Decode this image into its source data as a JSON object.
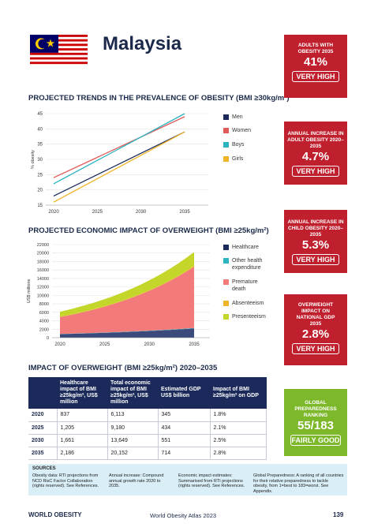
{
  "header": {
    "country": "Malaysia"
  },
  "sections": {
    "trends": "PROJECTED TRENDS IN THE PREVALENCE OF OBESITY (BMI ≥30kg/m²)",
    "economic": "PROJECTED ECONOMIC IMPACT OF OVERWEIGHT (BMI ≥25kg/m²)",
    "impact": "IMPACT OF OVERWEIGHT (BMI ≥25kg/m²) 2020–2035"
  },
  "chart_data": [
    {
      "type": "line",
      "x": [
        2020,
        2035
      ],
      "xticks": [
        "2020",
        "2025",
        "2030",
        "2035"
      ],
      "yticks": [
        "15",
        "20",
        "25",
        "30",
        "35",
        "40",
        "45"
      ],
      "ylim": [
        15,
        45
      ],
      "ylabel": "% obesity",
      "series": [
        {
          "name": "Men",
          "color": "#1b2a5a",
          "values": [
            18,
            39
          ]
        },
        {
          "name": "Women",
          "color": "#e05a5a",
          "values": [
            24,
            44
          ]
        },
        {
          "name": "Boys",
          "color": "#2bb3c0",
          "values": [
            22,
            45
          ]
        },
        {
          "name": "Girls",
          "color": "#f0b428",
          "values": [
            16,
            39
          ]
        }
      ]
    },
    {
      "type": "area",
      "x": [
        2020,
        2035
      ],
      "xticks": [
        "2020",
        "2025",
        "2030",
        "2035"
      ],
      "yticks": [
        "0",
        "2000",
        "4000",
        "6000",
        "8000",
        "10000",
        "12000",
        "14000",
        "16000",
        "18000",
        "20000",
        "22000"
      ],
      "ylim": [
        0,
        22000
      ],
      "ylabel": "US$ millions",
      "series": [
        {
          "name": "Healthcare",
          "color": "#3b4a7a",
          "values": [
            837,
            2186
          ]
        },
        {
          "name": "Other health expenditure",
          "color": "#2bb3c0",
          "values": [
            50,
            100
          ]
        },
        {
          "name": "Premature death",
          "color": "#f27a7a",
          "values": [
            4000,
            14500
          ]
        },
        {
          "name": "Absenteeism",
          "color": "#f0b428",
          "values": [
            50,
            150
          ]
        },
        {
          "name": "Presenteeism",
          "color": "#c5d62b",
          "values": [
            1200,
            3300
          ]
        }
      ]
    }
  ],
  "boxes": [
    {
      "label": "ADULTS WITH OBESITY 2035",
      "value": "41%",
      "rating": "VERY HIGH"
    },
    {
      "label": "ANNUAL INCREASE IN ADULT OBESITY 2020–2035",
      "value": "4.7%",
      "rating": "VERY HIGH"
    },
    {
      "label": "ANNUAL INCREASE IN CHILD OBESITY 2020–2035",
      "value": "5.3%",
      "rating": "VERY HIGH"
    },
    {
      "label": "OVERWEIGHT IMPACT ON NATIONAL GDP 2035",
      "value": "2.8%",
      "rating": "VERY HIGH"
    },
    {
      "label": "GLOBAL PREPAREDNESS RANKING",
      "value": "55/183",
      "rating": "FAIRLY GOOD"
    }
  ],
  "table": {
    "headers": [
      "",
      "Healthcare impact of BMI ≥25kg/m², US$ million",
      "Total economic impact of BMI ≥25kg/m², US$ million",
      "Estimated GDP US$ billion",
      "Impact of BMI ≥25kg/m² on GDP"
    ],
    "rows": [
      [
        "2020",
        "837",
        "6,113",
        "345",
        "1.8%"
      ],
      [
        "2025",
        "1,205",
        "9,180",
        "434",
        "2.1%"
      ],
      [
        "2030",
        "1,661",
        "13,649",
        "551",
        "2.5%"
      ],
      [
        "2035",
        "2,186",
        "20,152",
        "714",
        "2.8%"
      ]
    ]
  },
  "sources": {
    "title": "SOURCES",
    "cols": [
      "Obesity data: RTI projections from NCD RisC Factor Collaboration (rights reserved). See References.",
      "Annual increase: Compound annual growth rate 2020 to 2035.",
      "Economic impact estimates: Summarised from RTI projections (rights reserved). See References.",
      "Global Preparedness: A ranking of all countries for their relative preparedness to tackle obesity, from 1=best to 183=worst. See Appendix."
    ]
  },
  "footer": {
    "logo": "WORLD OBESITY",
    "center": "World Obesity Atlas 2023",
    "page": "139"
  }
}
